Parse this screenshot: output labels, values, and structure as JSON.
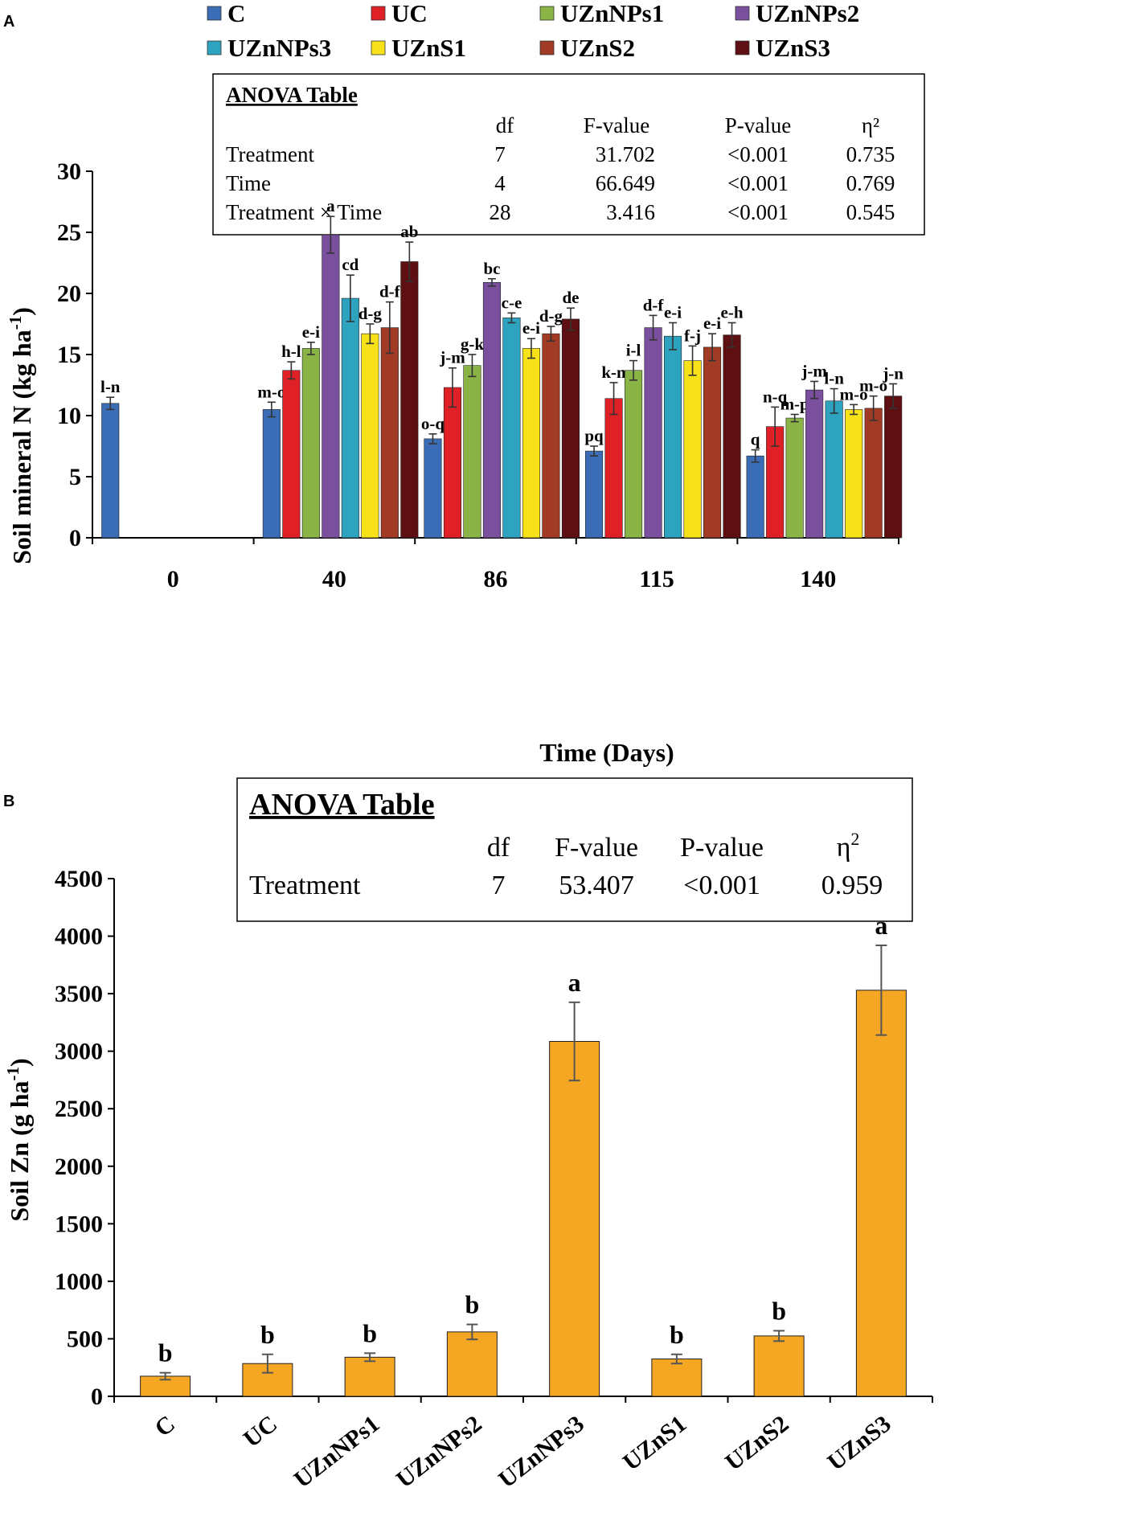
{
  "panel_a_letter": "A",
  "panel_b_letter": "B",
  "chart_data": [
    {
      "type": "bar",
      "panel": "A",
      "title": "",
      "xlabel": "Time (Days)",
      "ylabel_main": "Soil mineral N (kg ha",
      "ylabel_sup": "-1",
      "ylabel_end": ")",
      "ylim": [
        0,
        30
      ],
      "yticks": [
        0,
        5,
        10,
        15,
        20,
        25,
        30
      ],
      "categories": [
        "0",
        "40",
        "86",
        "115",
        "140"
      ],
      "legend": [
        "C",
        "UC",
        "UZnNPs1",
        "UZnNPs2",
        "UZnNPs3",
        "UZnS1",
        "UZnS2",
        "UZnS3"
      ],
      "colors": [
        "#3a6db5",
        "#e02027",
        "#8ab446",
        "#7a4f9e",
        "#2ea3bf",
        "#f7e21a",
        "#a23b25",
        "#5d0f12"
      ],
      "series": [
        {
          "name": "C",
          "values": [
            11.0,
            10.5,
            8.1,
            7.1,
            6.7
          ],
          "errors": [
            0.5,
            0.6,
            0.4,
            0.4,
            0.5
          ],
          "letters": [
            "l-n",
            "m-o",
            "o-q",
            "pq",
            "q"
          ]
        },
        {
          "name": "UC",
          "values": [
            null,
            13.7,
            12.3,
            11.4,
            9.1
          ],
          "errors": [
            null,
            0.7,
            1.6,
            1.3,
            1.6
          ],
          "letters": [
            "",
            "h-l",
            "j-m",
            "k-n",
            "n-q"
          ]
        },
        {
          "name": "UZnNPs1",
          "values": [
            null,
            15.5,
            14.1,
            13.7,
            9.8
          ],
          "errors": [
            null,
            0.5,
            0.9,
            0.8,
            0.3
          ],
          "letters": [
            "",
            "e-i",
            "g-k",
            "i-l",
            "m-p"
          ]
        },
        {
          "name": "UZnNPs2",
          "values": [
            null,
            24.8,
            20.9,
            17.2,
            12.1
          ],
          "errors": [
            null,
            1.5,
            0.3,
            1.0,
            0.7
          ],
          "letters": [
            "",
            "a",
            "bc",
            "d-f",
            "j-m"
          ]
        },
        {
          "name": "UZnNPs3",
          "values": [
            null,
            19.6,
            18.0,
            16.5,
            11.2
          ],
          "errors": [
            null,
            1.9,
            0.4,
            1.1,
            1.0
          ],
          "letters": [
            "",
            "cd",
            "c-e",
            "e-i",
            "l-n"
          ]
        },
        {
          "name": "UZnS1",
          "values": [
            null,
            16.7,
            15.5,
            14.5,
            10.5
          ],
          "errors": [
            null,
            0.8,
            0.8,
            1.2,
            0.4
          ],
          "letters": [
            "",
            "d-g",
            "e-i",
            "f-j",
            "m-o"
          ]
        },
        {
          "name": "UZnS2",
          "values": [
            null,
            17.2,
            16.7,
            15.6,
            10.6
          ],
          "errors": [
            null,
            2.1,
            0.6,
            1.1,
            1.0
          ],
          "letters": [
            "",
            "d-f",
            "d-g",
            "e-i",
            "m-o"
          ]
        },
        {
          "name": "UZnS3",
          "values": [
            null,
            22.6,
            17.9,
            16.6,
            11.6
          ],
          "errors": [
            null,
            1.6,
            0.9,
            1.0,
            1.0
          ],
          "letters": [
            "",
            "ab",
            "de",
            "e-h",
            "j-n"
          ]
        }
      ],
      "anova": {
        "title": "ANOVA Table",
        "headers": [
          "df",
          "F-value",
          "P-value",
          "η²"
        ],
        "rows": [
          {
            "label": "Treatment",
            "df": "7",
            "f": "31.702",
            "p": "<0.001",
            "eta": "0.735"
          },
          {
            "label": "Time",
            "df": "4",
            "f": "66.649",
            "p": "<0.001",
            "eta": "0.769"
          },
          {
            "label": "Treatment × Time",
            "df": "28",
            "f": "3.416",
            "p": "<0.001",
            "eta": "0.545"
          }
        ]
      }
    },
    {
      "type": "bar",
      "panel": "B",
      "title": "",
      "xlabel": "",
      "ylabel_main": "Soil Zn (g ha",
      "ylabel_sup": "-1",
      "ylabel_end": ")",
      "ylim": [
        0,
        4500
      ],
      "yticks": [
        0,
        500,
        1000,
        1500,
        2000,
        2500,
        3000,
        3500,
        4000,
        4500
      ],
      "categories": [
        "C",
        "UC",
        "UZnNPs1",
        "UZnNPs2",
        "UZnNPs3",
        "UZnS1",
        "UZnS2",
        "UZnS3"
      ],
      "color": "#f5a623",
      "values": [
        175,
        285,
        340,
        560,
        3085,
        325,
        525,
        3530
      ],
      "errors": [
        30,
        80,
        35,
        65,
        340,
        40,
        45,
        390
      ],
      "letters": [
        "b",
        "b",
        "b",
        "b",
        "a",
        "b",
        "b",
        "a"
      ],
      "anova": {
        "title": "ANOVA Table",
        "headers": [
          "df",
          "F-value",
          "P-value",
          "η"
        ],
        "eta_sup": "2",
        "rows": [
          {
            "label": "Treatment",
            "df": "7",
            "f": "53.407",
            "p": "<0.001",
            "eta": "0.959"
          }
        ]
      }
    }
  ]
}
